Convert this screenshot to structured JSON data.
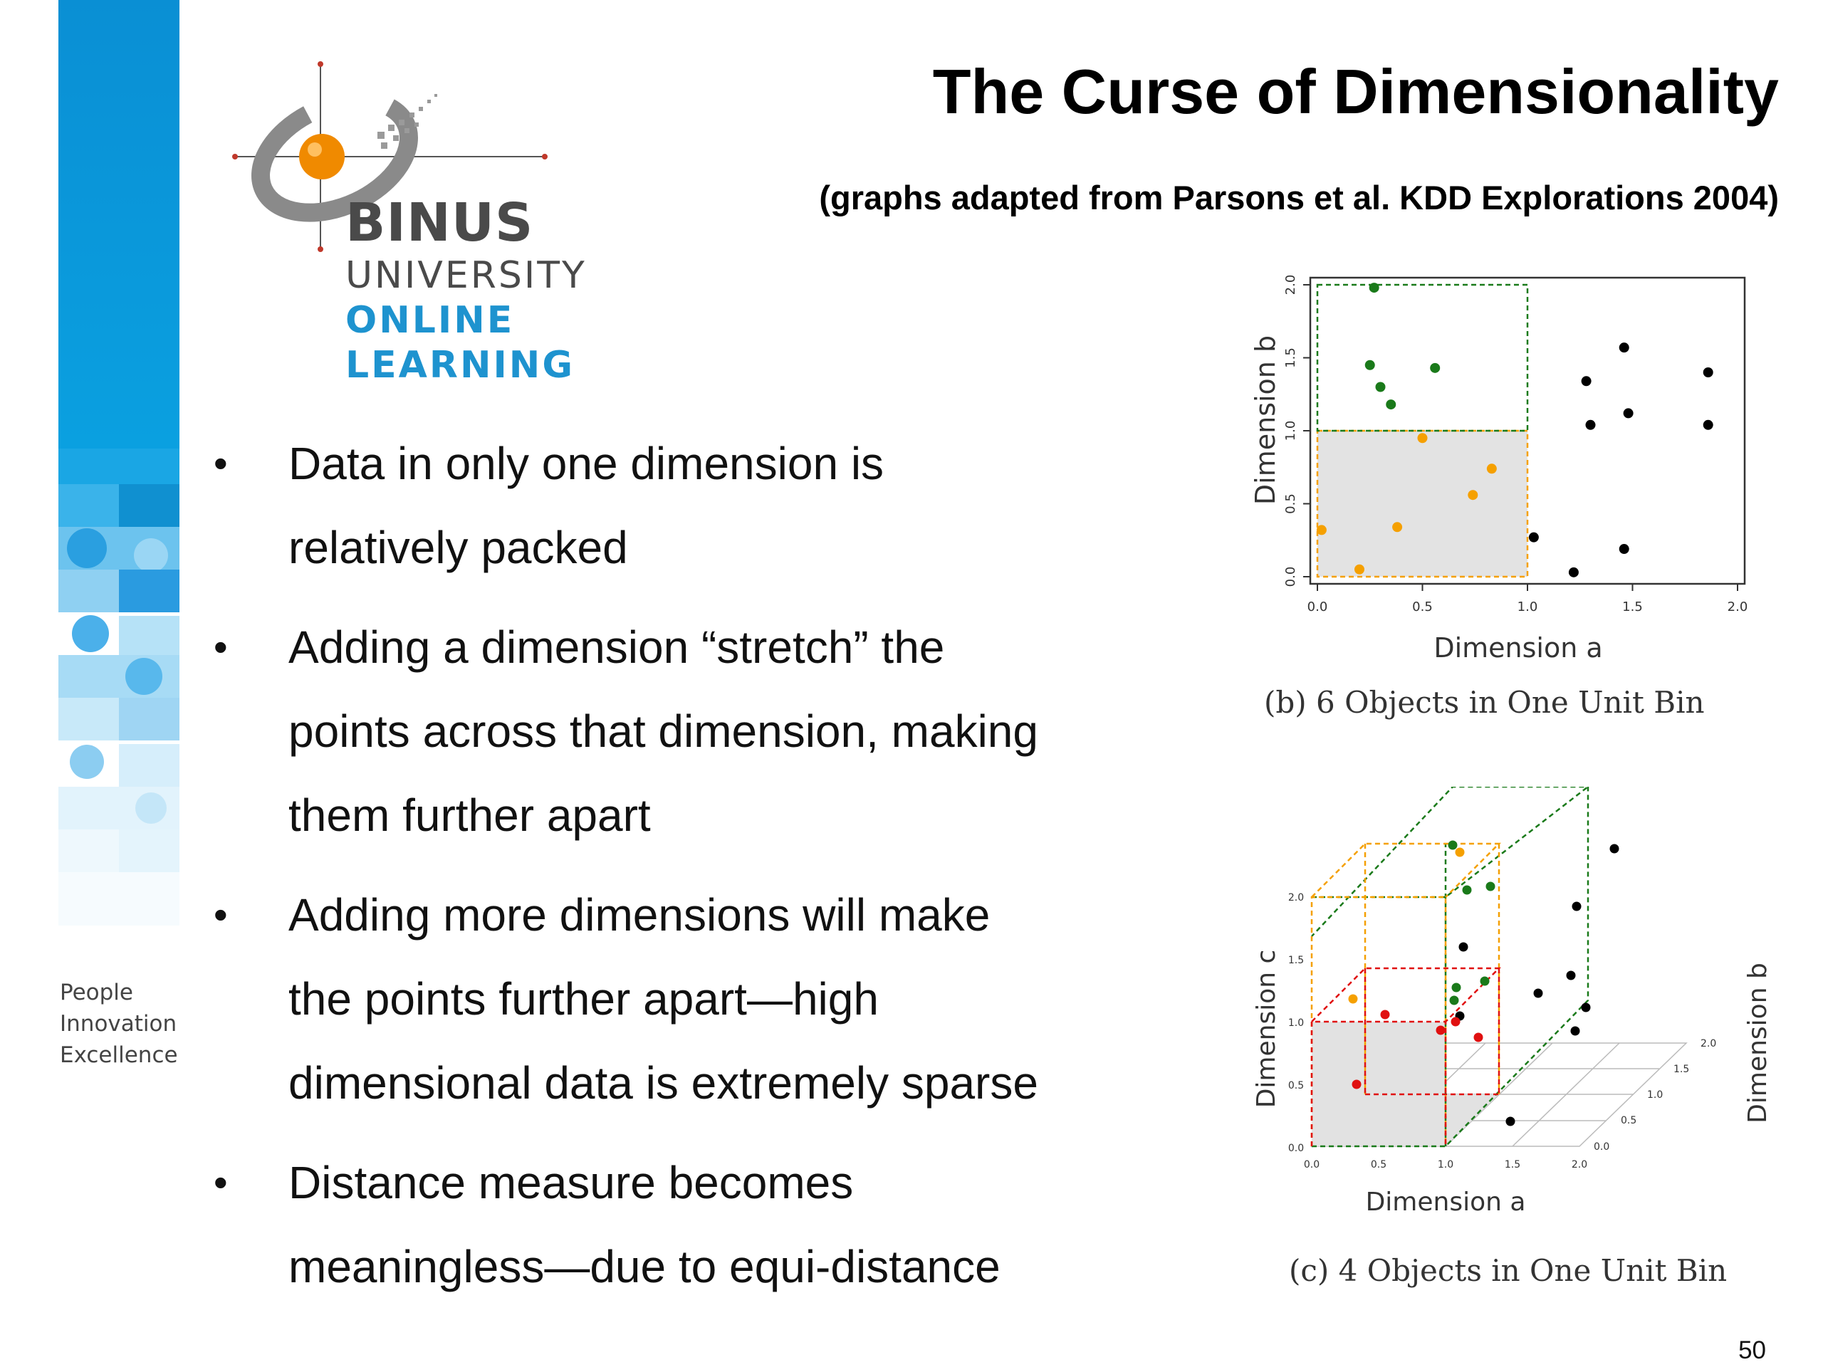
{
  "slide": {
    "title": "The Curse of Dimensionality",
    "subtitle": "(graphs adapted from Parsons et al. KDD Explorations 2004)",
    "page_number": "50"
  },
  "logo": {
    "line1": "BINUS",
    "line2": "UNIVERSITY",
    "line3": "ONLINE",
    "line4": "LEARNING"
  },
  "tagline": {
    "line1": "People",
    "line2": "Innovation",
    "line3": "Excellence"
  },
  "bullets": [
    {
      "marker": "•",
      "line1": "Data in only one dimension is",
      "line2": "relatively packed",
      "line3": ""
    },
    {
      "marker": "•",
      "line1": "Adding a dimension “stretch” the",
      "line2": "points across that dimension, making",
      "line3": "them further apart"
    },
    {
      "marker": "•",
      "line1": "Adding more dimensions will make",
      "line2": "the points further apart—high",
      "line3": "dimensional data is extremely sparse"
    },
    {
      "marker": "•",
      "line1": "Distance measure becomes",
      "line2": "meaningless—due to equi-distance",
      "line3": ""
    }
  ],
  "chart_data": [
    {
      "type": "scatter",
      "title": "",
      "caption": "(b) 6 Objects in One Unit Bin",
      "xlabel": "Dimension a",
      "ylabel": "Dimension b",
      "xlim": [
        0,
        2
      ],
      "ylim": [
        0,
        2
      ],
      "xticks": [
        "0.0",
        "0.5",
        "1.0",
        "1.5",
        "2.0"
      ],
      "yticks": [
        "0.0",
        "0.5",
        "1.0",
        "1.5",
        "2.0"
      ],
      "series": [
        {
          "color": "#f5a000",
          "points": [
            [
              0.02,
              0.32
            ],
            [
              0.2,
              0.05
            ],
            [
              0.38,
              0.34
            ],
            [
              0.5,
              0.95
            ],
            [
              0.74,
              0.56
            ],
            [
              0.83,
              0.74
            ]
          ]
        },
        {
          "color": "#1a7a1a",
          "points": [
            [
              0.27,
              1.98
            ],
            [
              0.25,
              1.45
            ],
            [
              0.3,
              1.3
            ],
            [
              0.35,
              1.18
            ],
            [
              0.56,
              1.43
            ]
          ]
        },
        {
          "color": "#000000",
          "points": [
            [
              1.03,
              0.27
            ],
            [
              1.22,
              0.03
            ],
            [
              1.28,
              1.34
            ],
            [
              1.3,
              1.04
            ],
            [
              1.46,
              1.57
            ],
            [
              1.48,
              1.12
            ],
            [
              1.46,
              0.19
            ],
            [
              1.86,
              1.4
            ],
            [
              1.86,
              1.04
            ]
          ]
        }
      ]
    },
    {
      "type": "scatter",
      "title": "",
      "caption": "(c) 4 Objects in One Unit Bin",
      "xlabel": "Dimension a",
      "ylabel": "Dimension c",
      "zlabel": "Dimension b",
      "xticks": [
        "0.0",
        "0.5",
        "1.0",
        "1.5",
        "2.0"
      ],
      "yticks": [
        "0.0",
        "0.5",
        "1.0",
        "1.5",
        "2.0"
      ],
      "zticks": [
        "0.0",
        "0.5",
        "1.0",
        "1.5",
        "2.0"
      ]
    }
  ]
}
